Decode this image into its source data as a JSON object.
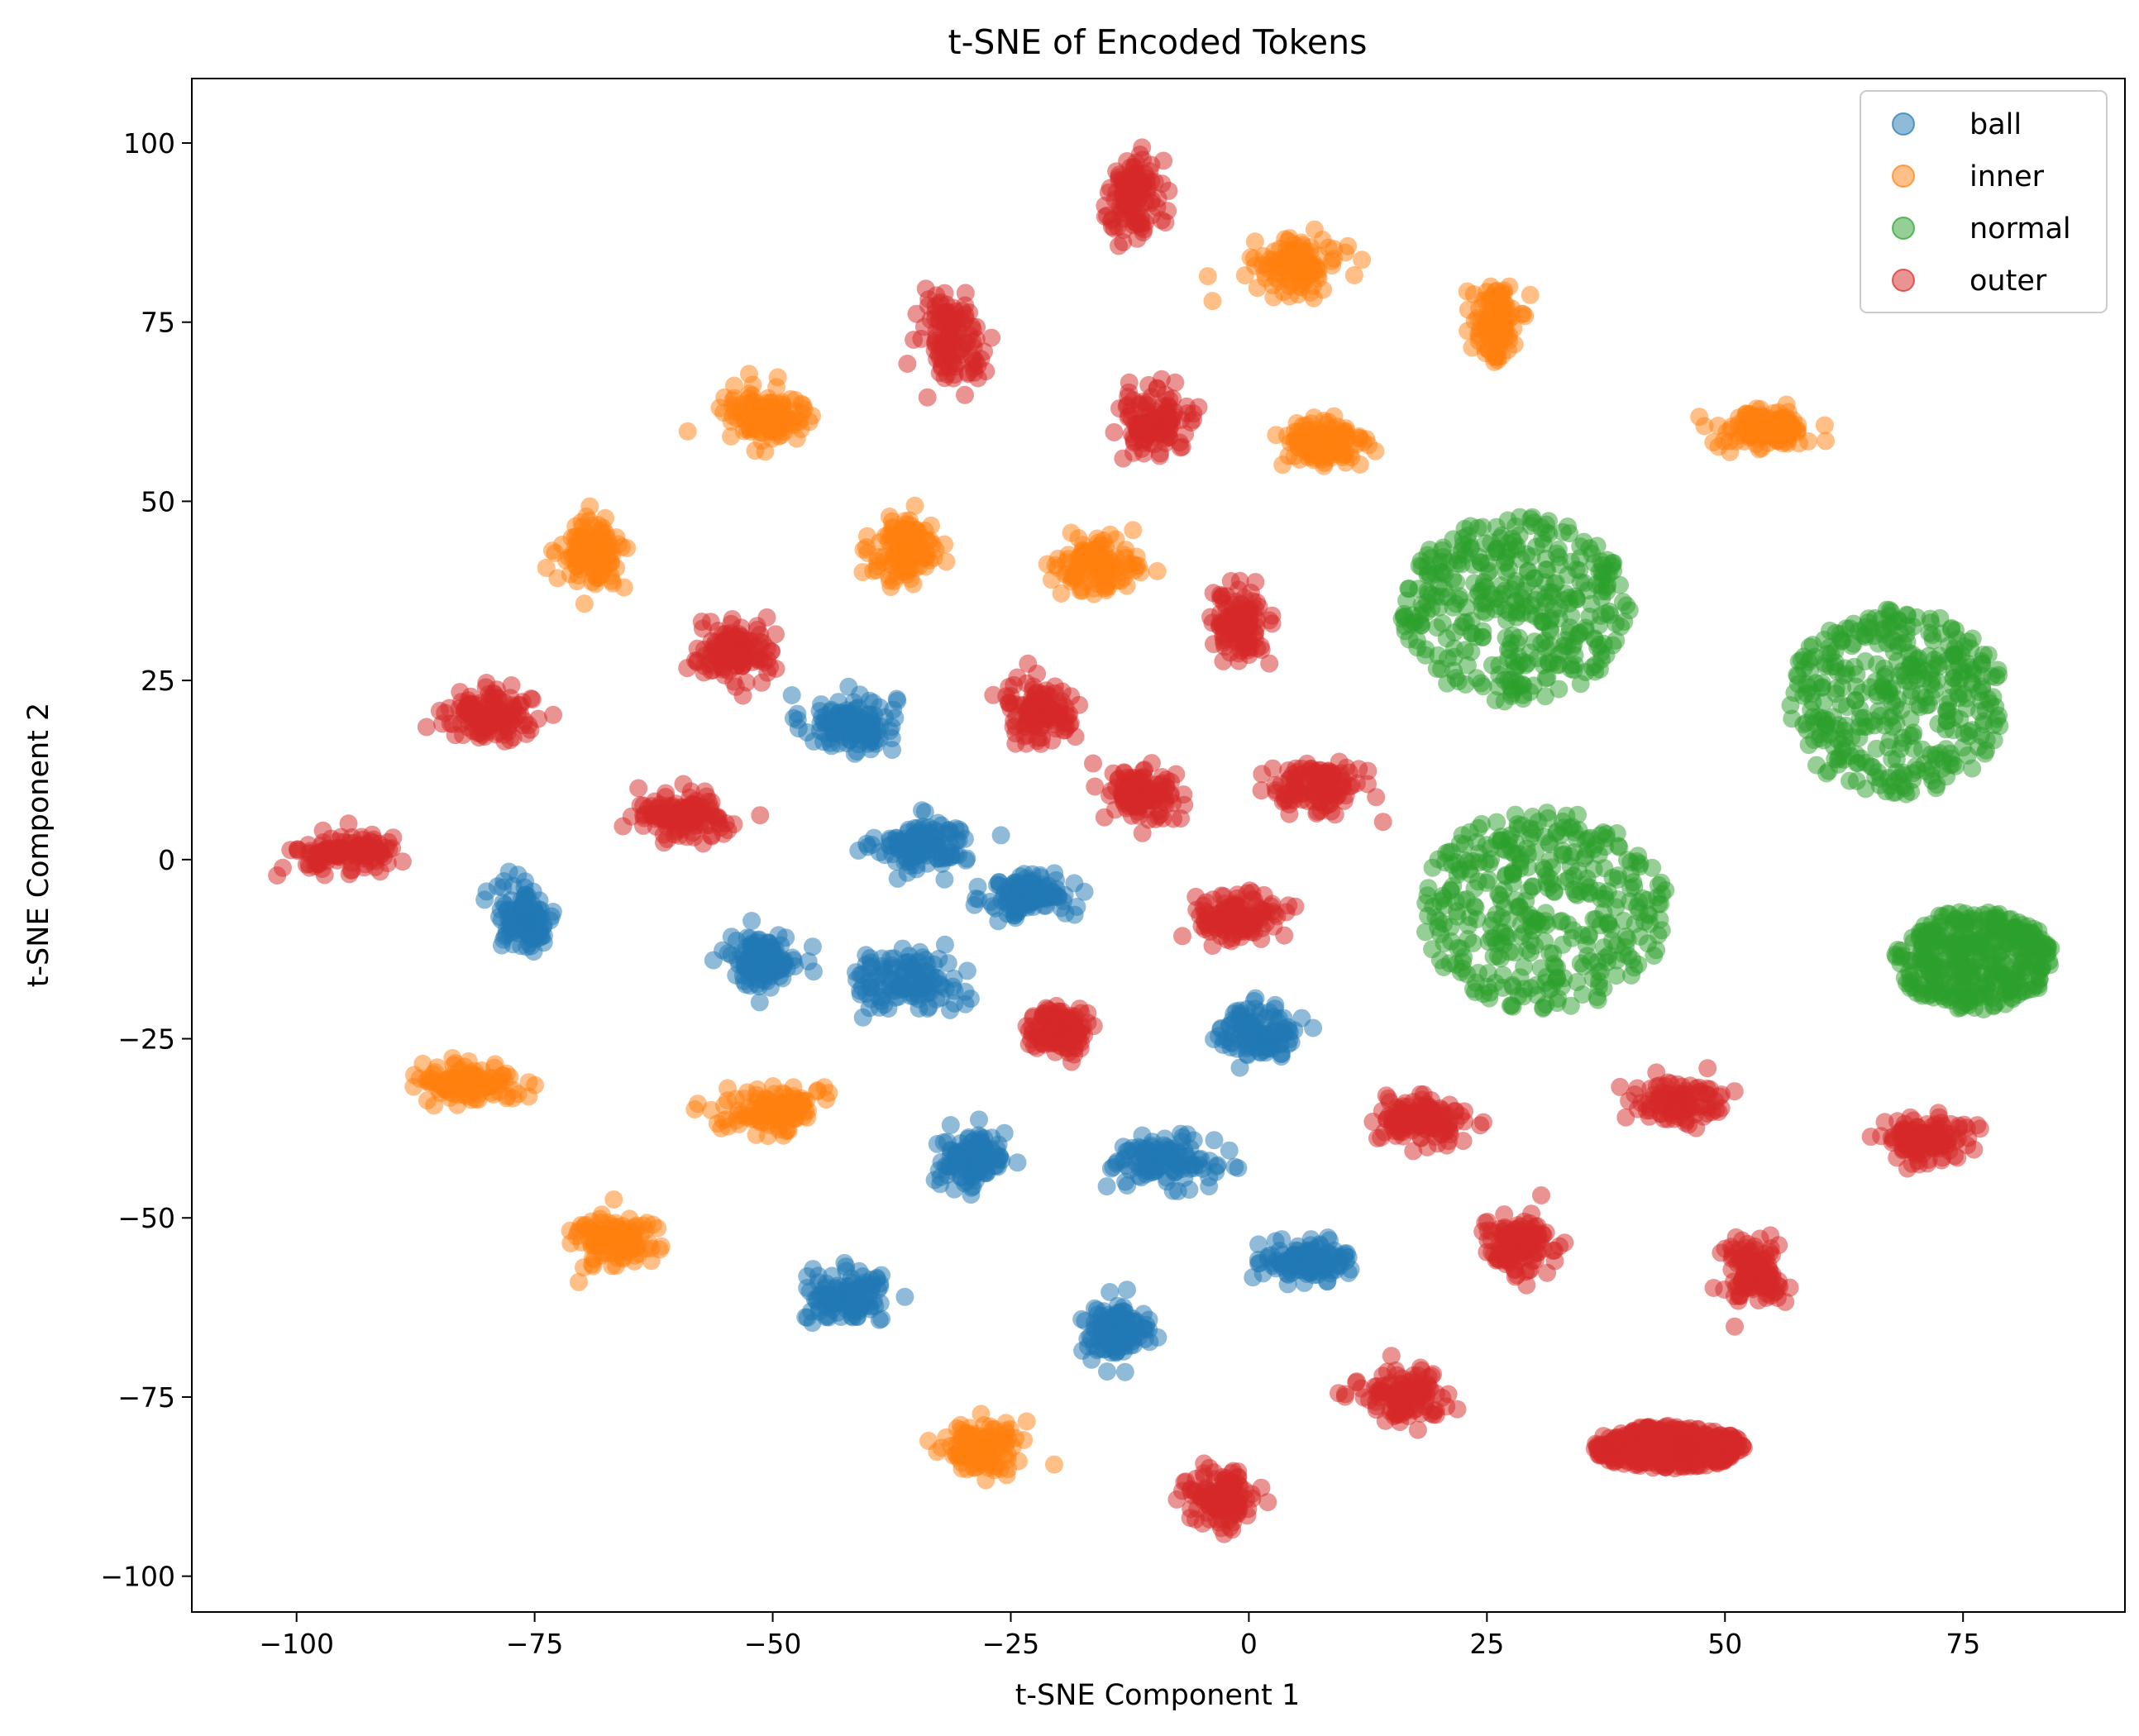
{
  "chart_data": {
    "type": "scatter",
    "title": "t-SNE of Encoded Tokens",
    "xlabel": "t-SNE Component 1",
    "ylabel": "t-SNE Component 2",
    "xlim": [
      -111,
      92
    ],
    "ylim": [
      -105,
      109
    ],
    "xticks": [
      -100,
      -75,
      -50,
      -25,
      0,
      25,
      50,
      75
    ],
    "yticks": [
      -100,
      -75,
      -50,
      -25,
      0,
      25,
      50,
      75,
      100
    ],
    "xtick_labels": [
      "−100",
      "−75",
      "−50",
      "−25",
      "0",
      "25",
      "50",
      "75"
    ],
    "ytick_labels": [
      "−100",
      "−75",
      "−50",
      "−25",
      "0",
      "25",
      "50",
      "75",
      "100"
    ],
    "grid": false,
    "legend_position": "top-right",
    "point_alpha": 0.5,
    "series": [
      {
        "name": "ball",
        "color": "#1f77b4",
        "clusters": [
          {
            "cx": -42,
            "cy": 19,
            "rx": 5.5,
            "ry": 4.5
          },
          {
            "cx": -34,
            "cy": 2,
            "rx": 5.5,
            "ry": 4
          },
          {
            "cx": -23,
            "cy": -5,
            "rx": 5,
            "ry": 3.5
          },
          {
            "cx": -76,
            "cy": -8,
            "rx": 3.5,
            "ry": 5
          },
          {
            "cx": -51,
            "cy": -14,
            "rx": 4,
            "ry": 4
          },
          {
            "cx": -36,
            "cy": -17,
            "rx": 6.5,
            "ry": 4.5
          },
          {
            "cx": 1,
            "cy": -24,
            "rx": 4.5,
            "ry": 4
          },
          {
            "cx": -29,
            "cy": -42,
            "rx": 4,
            "ry": 4.5
          },
          {
            "cx": -9,
            "cy": -42,
            "rx": 6,
            "ry": 3.5
          },
          {
            "cx": 6,
            "cy": -56,
            "rx": 5,
            "ry": 3
          },
          {
            "cx": -42,
            "cy": -61,
            "rx": 5,
            "ry": 4
          },
          {
            "cx": -14,
            "cy": -66,
            "rx": 4,
            "ry": 4
          }
        ]
      },
      {
        "name": "inner",
        "color": "#ff7f0e",
        "clusters": [
          {
            "cx": 5,
            "cy": 83,
            "rx": 5,
            "ry": 4
          },
          {
            "cx": 26,
            "cy": 75,
            "rx": 2.5,
            "ry": 6
          },
          {
            "cx": -51,
            "cy": 62,
            "rx": 5.5,
            "ry": 5
          },
          {
            "cx": 8,
            "cy": 58,
            "rx": 5,
            "ry": 4
          },
          {
            "cx": 54,
            "cy": 60,
            "rx": 5.5,
            "ry": 3
          },
          {
            "cx": -69,
            "cy": 43,
            "rx": 3.5,
            "ry": 5
          },
          {
            "cx": -36,
            "cy": 43,
            "rx": 4,
            "ry": 5
          },
          {
            "cx": -16,
            "cy": 41,
            "rx": 4.5,
            "ry": 4
          },
          {
            "cx": -82,
            "cy": -31,
            "rx": 6,
            "ry": 3
          },
          {
            "cx": -50,
            "cy": -35,
            "rx": 5.5,
            "ry": 3.5
          },
          {
            "cx": -67,
            "cy": -53,
            "rx": 4.5,
            "ry": 4.5
          },
          {
            "cx": -28,
            "cy": -82,
            "rx": 4.5,
            "ry": 4
          }
        ]
      },
      {
        "name": "normal",
        "color": "#2ca02c",
        "clusters": [
          {
            "cx": 28,
            "cy": 35,
            "rx": 12,
            "ry": 13
          },
          {
            "cx": 68,
            "cy": 22,
            "rx": 11.5,
            "ry": 13
          },
          {
            "cx": 31,
            "cy": -7,
            "rx": 13,
            "ry": 14
          },
          {
            "cx": 76,
            "cy": -14,
            "rx": 8.5,
            "ry": 7
          }
        ]
      },
      {
        "name": "outer",
        "color": "#d62728",
        "clusters": [
          {
            "cx": -12,
            "cy": 93,
            "rx": 3,
            "ry": 6
          },
          {
            "cx": -31,
            "cy": 73,
            "rx": 4,
            "ry": 7
          },
          {
            "cx": -10,
            "cy": 61,
            "rx": 4.5,
            "ry": 4.5
          },
          {
            "cx": -1,
            "cy": 33,
            "rx": 3,
            "ry": 6
          },
          {
            "cx": -54,
            "cy": 29,
            "rx": 5,
            "ry": 4
          },
          {
            "cx": -80,
            "cy": 20,
            "rx": 5,
            "ry": 4
          },
          {
            "cx": -22,
            "cy": 21,
            "rx": 4,
            "ry": 4.5
          },
          {
            "cx": -11,
            "cy": 9,
            "rx": 4,
            "ry": 4
          },
          {
            "cx": 7,
            "cy": 10,
            "rx": 5,
            "ry": 4
          },
          {
            "cx": -59,
            "cy": 6,
            "rx": 6,
            "ry": 3.5
          },
          {
            "cx": -95,
            "cy": 1,
            "rx": 6,
            "ry": 3
          },
          {
            "cx": -1,
            "cy": -8,
            "rx": 5,
            "ry": 3.5
          },
          {
            "cx": -20,
            "cy": -24,
            "rx": 3.5,
            "ry": 4
          },
          {
            "cx": 18,
            "cy": -36,
            "rx": 5,
            "ry": 3.5
          },
          {
            "cx": 45,
            "cy": -34,
            "rx": 5.5,
            "ry": 3.5
          },
          {
            "cx": 71,
            "cy": -39,
            "rx": 5,
            "ry": 3.5
          },
          {
            "cx": 28,
            "cy": -54,
            "rx": 4,
            "ry": 4.5
          },
          {
            "cx": 53,
            "cy": -58,
            "rx": 3.5,
            "ry": 5
          },
          {
            "cx": 16,
            "cy": -75,
            "rx": 5,
            "ry": 4
          },
          {
            "cx": 44,
            "cy": -82,
            "rx": 8,
            "ry": 3
          },
          {
            "cx": -3,
            "cy": -89,
            "rx": 4,
            "ry": 4.5
          }
        ]
      }
    ]
  }
}
